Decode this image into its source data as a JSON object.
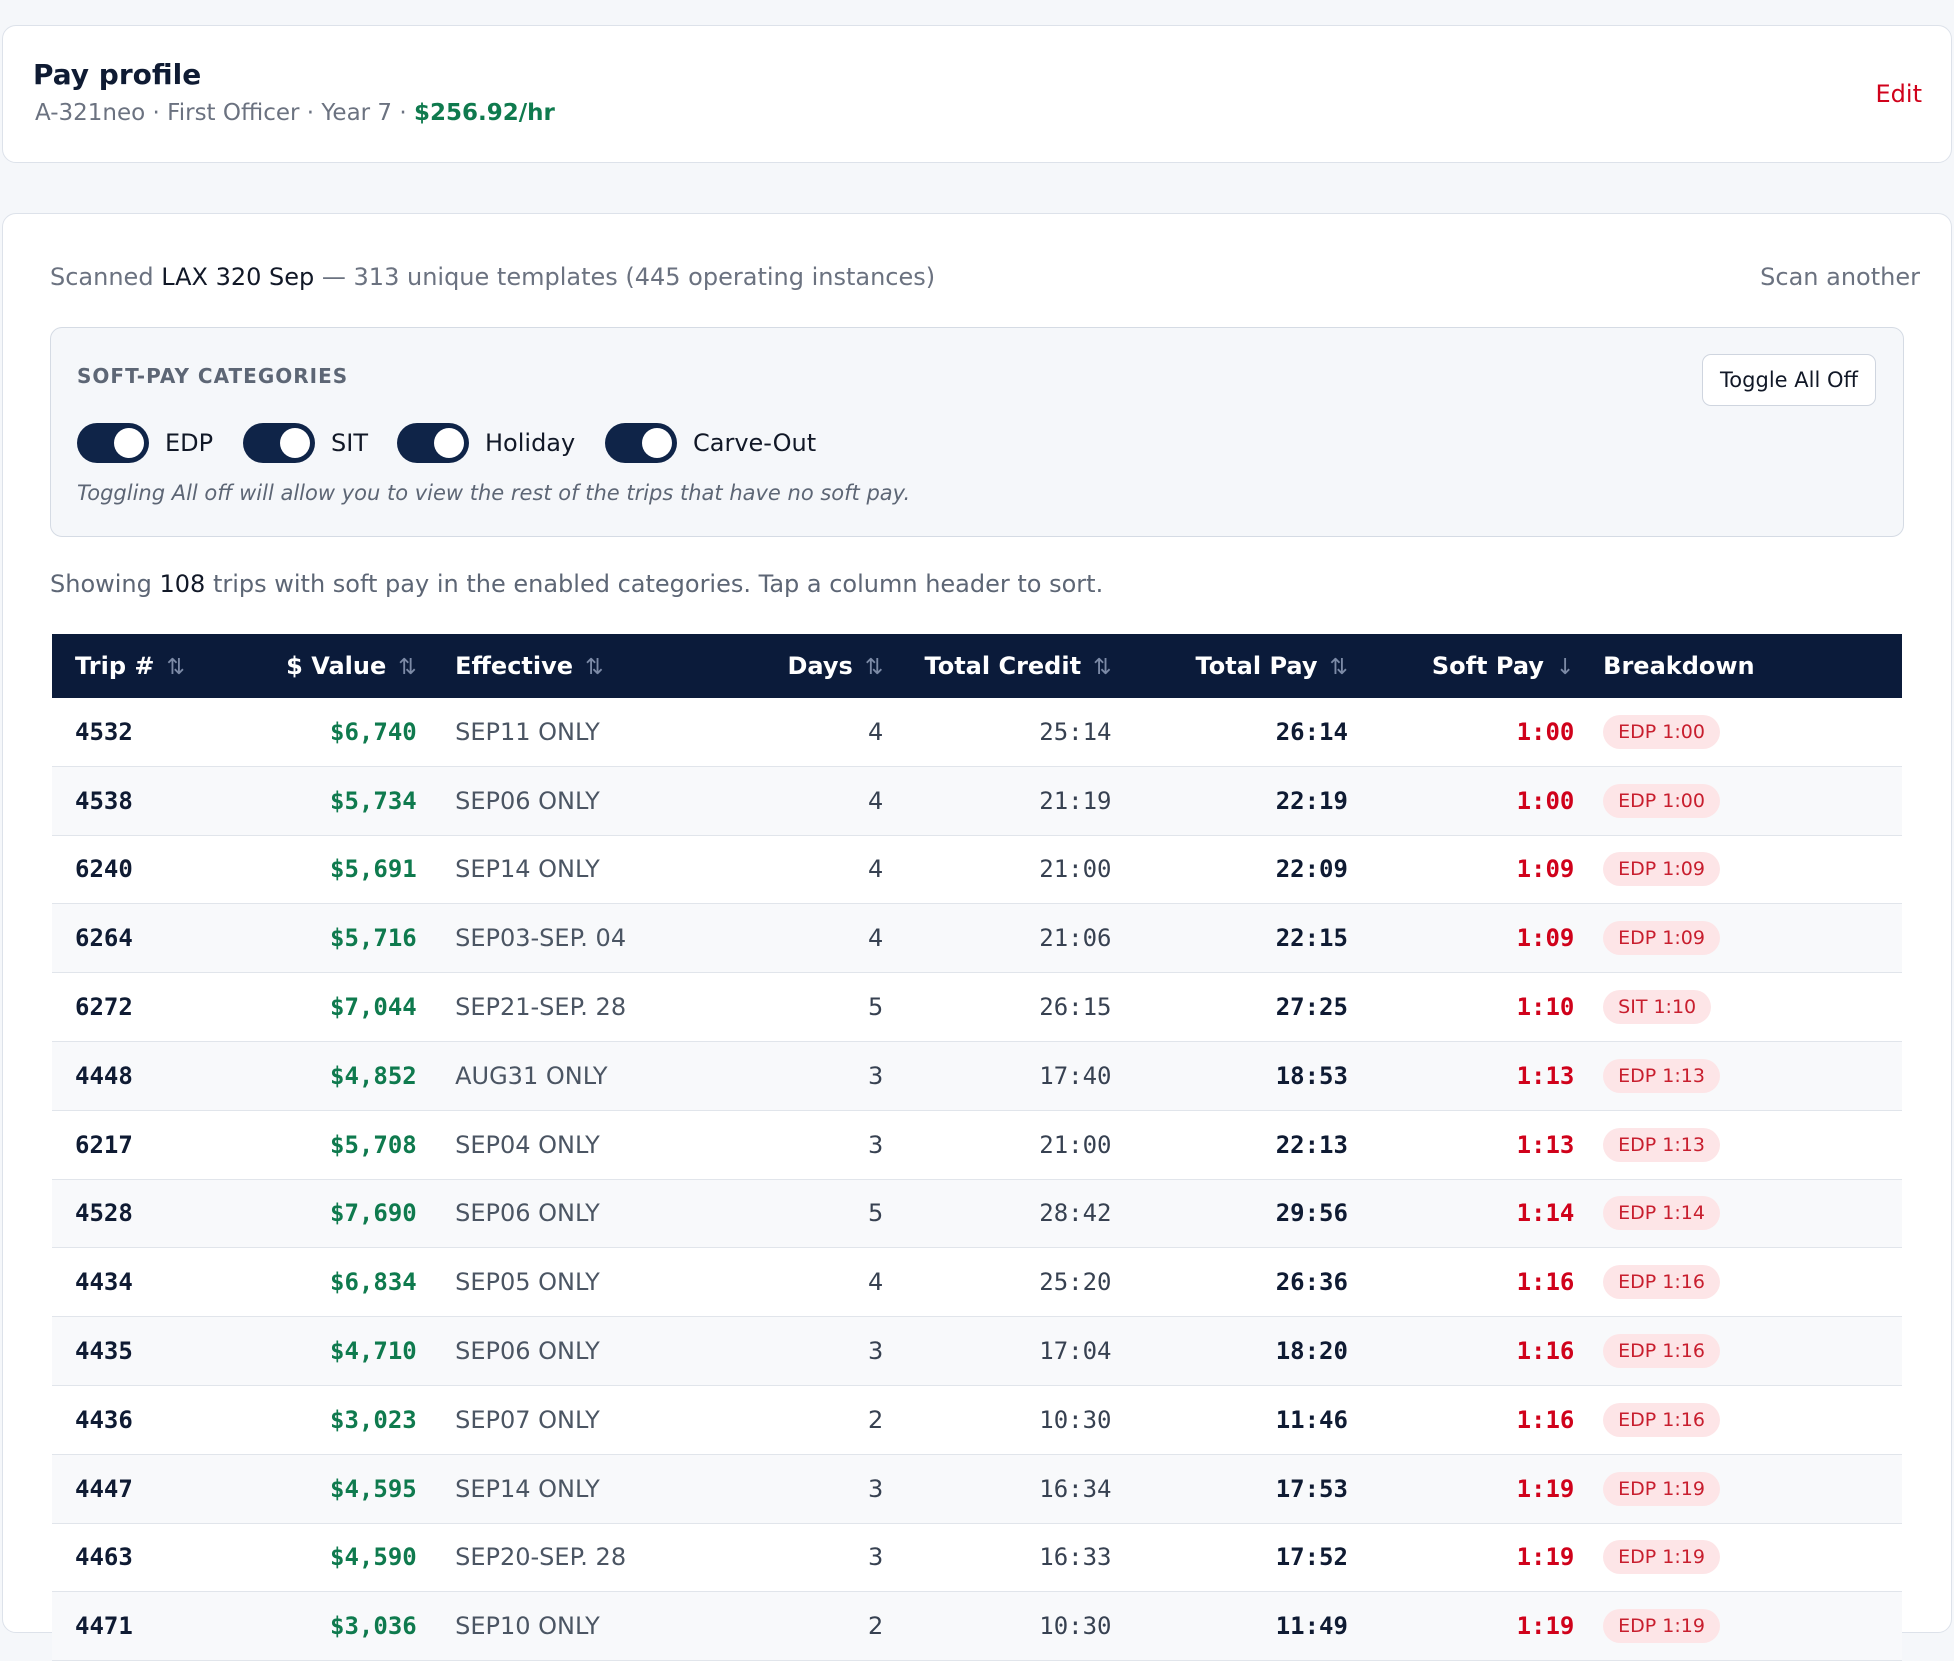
{
  "profile": {
    "title": "Pay profile",
    "aircraft": "A-321neo",
    "position": "First Officer",
    "year": "Year 7",
    "rate": "$256.92/hr",
    "separator": " · ",
    "edit_label": "Edit"
  },
  "scan": {
    "prefix": "Scanned ",
    "name": "LAX 320 Sep",
    "suffix": " — 313 unique templates (445 operating instances)",
    "scan_another_label": "Scan another"
  },
  "softpay": {
    "title": "SOFT-PAY CATEGORIES",
    "toggle_all_label": "Toggle All Off",
    "categories": [
      {
        "label": "EDP",
        "enabled": true
      },
      {
        "label": "SIT",
        "enabled": true
      },
      {
        "label": "Holiday",
        "enabled": true
      },
      {
        "label": "Carve-Out",
        "enabled": true
      }
    ],
    "hint": "Toggling All off will allow you to view the rest of the trips that have no soft pay."
  },
  "showing": {
    "prefix": "Showing ",
    "count": "108",
    "suffix": " trips with soft pay in the enabled categories. Tap a column header to sort."
  },
  "table": {
    "columns": [
      {
        "label": "Trip #",
        "sort_icon": "⇅"
      },
      {
        "label": "$ Value",
        "sort_icon": "⇅"
      },
      {
        "label": "Effective",
        "sort_icon": "⇅"
      },
      {
        "label": "Days",
        "sort_icon": "⇅"
      },
      {
        "label": "Total Credit",
        "sort_icon": "⇅"
      },
      {
        "label": "Total Pay",
        "sort_icon": "⇅"
      },
      {
        "label": "Soft Pay",
        "sort_icon": "↓"
      },
      {
        "label": "Breakdown",
        "sort_icon": ""
      }
    ],
    "rows": [
      {
        "trip": "4532",
        "value": "$6,740",
        "effective": "SEP11 ONLY",
        "days": "4",
        "credit": "25:14",
        "pay": "26:14",
        "soft": "1:00",
        "breakdown": "EDP 1:00"
      },
      {
        "trip": "4538",
        "value": "$5,734",
        "effective": "SEP06 ONLY",
        "days": "4",
        "credit": "21:19",
        "pay": "22:19",
        "soft": "1:00",
        "breakdown": "EDP 1:00"
      },
      {
        "trip": "6240",
        "value": "$5,691",
        "effective": "SEP14 ONLY",
        "days": "4",
        "credit": "21:00",
        "pay": "22:09",
        "soft": "1:09",
        "breakdown": "EDP 1:09"
      },
      {
        "trip": "6264",
        "value": "$5,716",
        "effective": "SEP03-SEP. 04",
        "days": "4",
        "credit": "21:06",
        "pay": "22:15",
        "soft": "1:09",
        "breakdown": "EDP 1:09"
      },
      {
        "trip": "6272",
        "value": "$7,044",
        "effective": "SEP21-SEP. 28",
        "days": "5",
        "credit": "26:15",
        "pay": "27:25",
        "soft": "1:10",
        "breakdown": "SIT 1:10"
      },
      {
        "trip": "4448",
        "value": "$4,852",
        "effective": "AUG31 ONLY",
        "days": "3",
        "credit": "17:40",
        "pay": "18:53",
        "soft": "1:13",
        "breakdown": "EDP 1:13"
      },
      {
        "trip": "6217",
        "value": "$5,708",
        "effective": "SEP04 ONLY",
        "days": "3",
        "credit": "21:00",
        "pay": "22:13",
        "soft": "1:13",
        "breakdown": "EDP 1:13"
      },
      {
        "trip": "4528",
        "value": "$7,690",
        "effective": "SEP06 ONLY",
        "days": "5",
        "credit": "28:42",
        "pay": "29:56",
        "soft": "1:14",
        "breakdown": "EDP 1:14"
      },
      {
        "trip": "4434",
        "value": "$6,834",
        "effective": "SEP05 ONLY",
        "days": "4",
        "credit": "25:20",
        "pay": "26:36",
        "soft": "1:16",
        "breakdown": "EDP 1:16"
      },
      {
        "trip": "4435",
        "value": "$4,710",
        "effective": "SEP06 ONLY",
        "days": "3",
        "credit": "17:04",
        "pay": "18:20",
        "soft": "1:16",
        "breakdown": "EDP 1:16"
      },
      {
        "trip": "4436",
        "value": "$3,023",
        "effective": "SEP07 ONLY",
        "days": "2",
        "credit": "10:30",
        "pay": "11:46",
        "soft": "1:16",
        "breakdown": "EDP 1:16"
      },
      {
        "trip": "4447",
        "value": "$4,595",
        "effective": "SEP14 ONLY",
        "days": "3",
        "credit": "16:34",
        "pay": "17:53",
        "soft": "1:19",
        "breakdown": "EDP 1:19"
      },
      {
        "trip": "4463",
        "value": "$4,590",
        "effective": "SEP20-SEP. 28",
        "days": "3",
        "credit": "16:33",
        "pay": "17:52",
        "soft": "1:19",
        "breakdown": "EDP 1:19"
      },
      {
        "trip": "4471",
        "value": "$3,036",
        "effective": "SEP10 ONLY",
        "days": "2",
        "credit": "10:30",
        "pay": "11:49",
        "soft": "1:19",
        "breakdown": "EDP 1:19"
      }
    ]
  },
  "colors": {
    "navy": "#0b1b3a",
    "positive": "#0f7a4e",
    "soft_pay": "#d0021b",
    "badge_bg": "#fde5e7"
  }
}
